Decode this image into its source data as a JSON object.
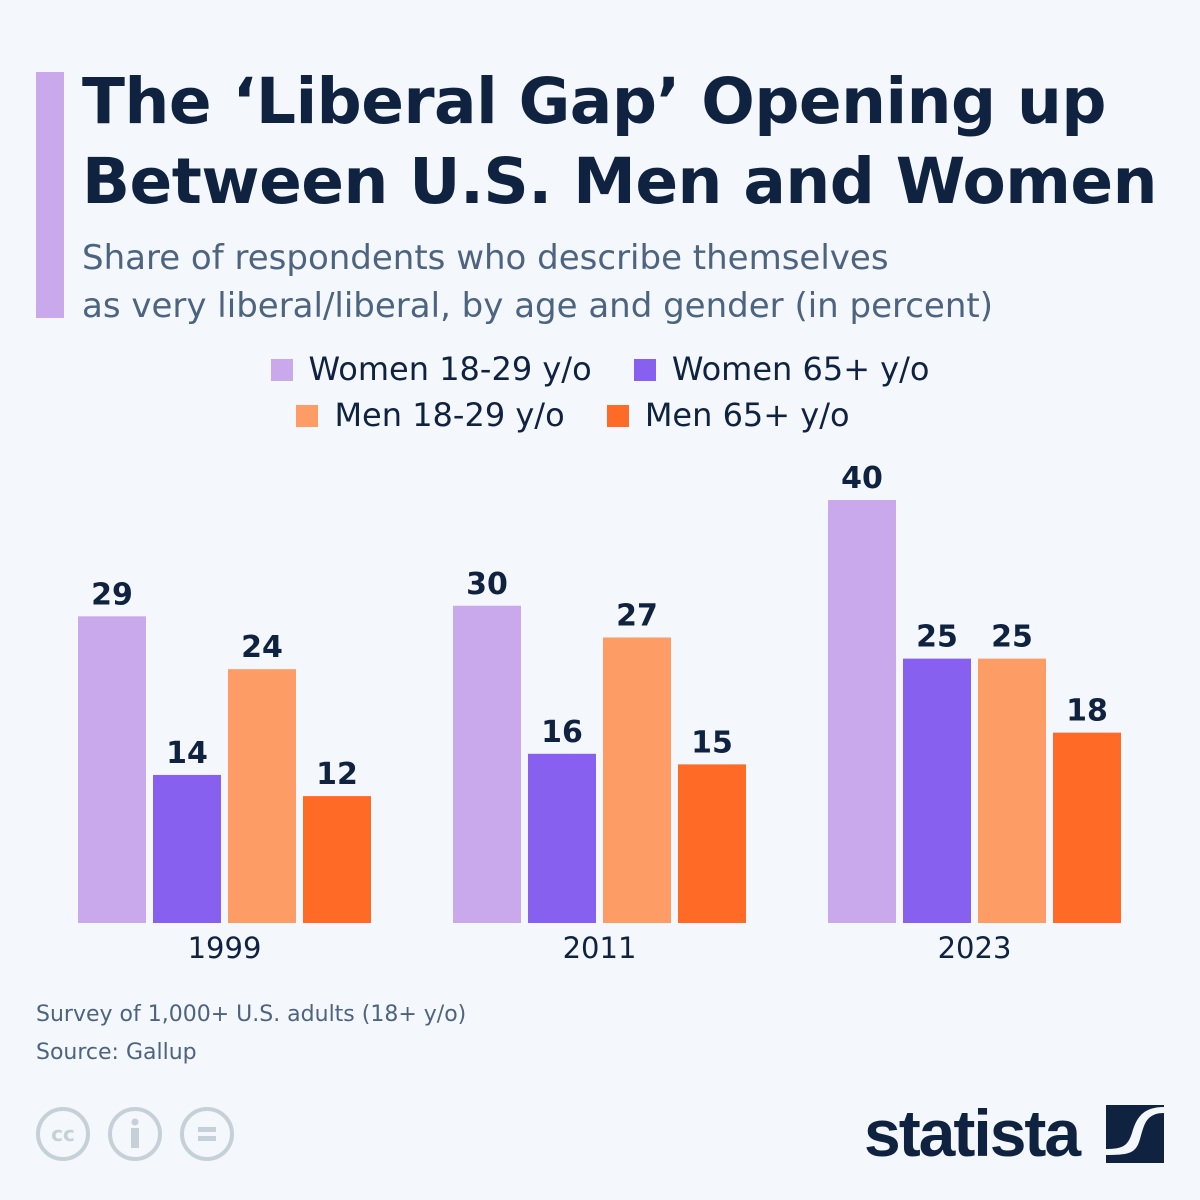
{
  "header": {
    "title_line1": "The ‘Liberal Gap’ Opening up",
    "title_line2": "Between U.S. Men and Women",
    "subtitle_line1": "Share of respondents who describe themselves",
    "subtitle_line2": "as very liberal/liberal, by age and gender (in percent)"
  },
  "chart_data": {
    "type": "bar",
    "title": "The ‘Liberal Gap’ Opening up Between U.S. Men and Women",
    "categories": [
      "1999",
      "2011",
      "2023"
    ],
    "series": [
      {
        "name": "Women 18-29 y/o",
        "color": "#c9a9ec",
        "values": [
          29,
          30,
          40
        ]
      },
      {
        "name": "Women 65+ y/o",
        "color": "#8760f0",
        "values": [
          14,
          16,
          25
        ]
      },
      {
        "name": "Men 18-29 y/o",
        "color": "#fd9c64",
        "values": [
          24,
          27,
          25
        ]
      },
      {
        "name": "Men 65+ y/o",
        "color": "#ff6b26",
        "values": [
          12,
          15,
          18
        ]
      }
    ],
    "ylim": [
      0,
      40
    ],
    "grid": false,
    "legend": "top-center",
    "data_labels": true
  },
  "footer": {
    "note": "Survey of 1,000+ U.S. adults (18+ y/o)",
    "source": "Source: Gallup",
    "license_icons": [
      "cc-icon",
      "attribution-icon",
      "no-derivatives-icon"
    ],
    "cc_text": "cc",
    "logo": "statista"
  }
}
